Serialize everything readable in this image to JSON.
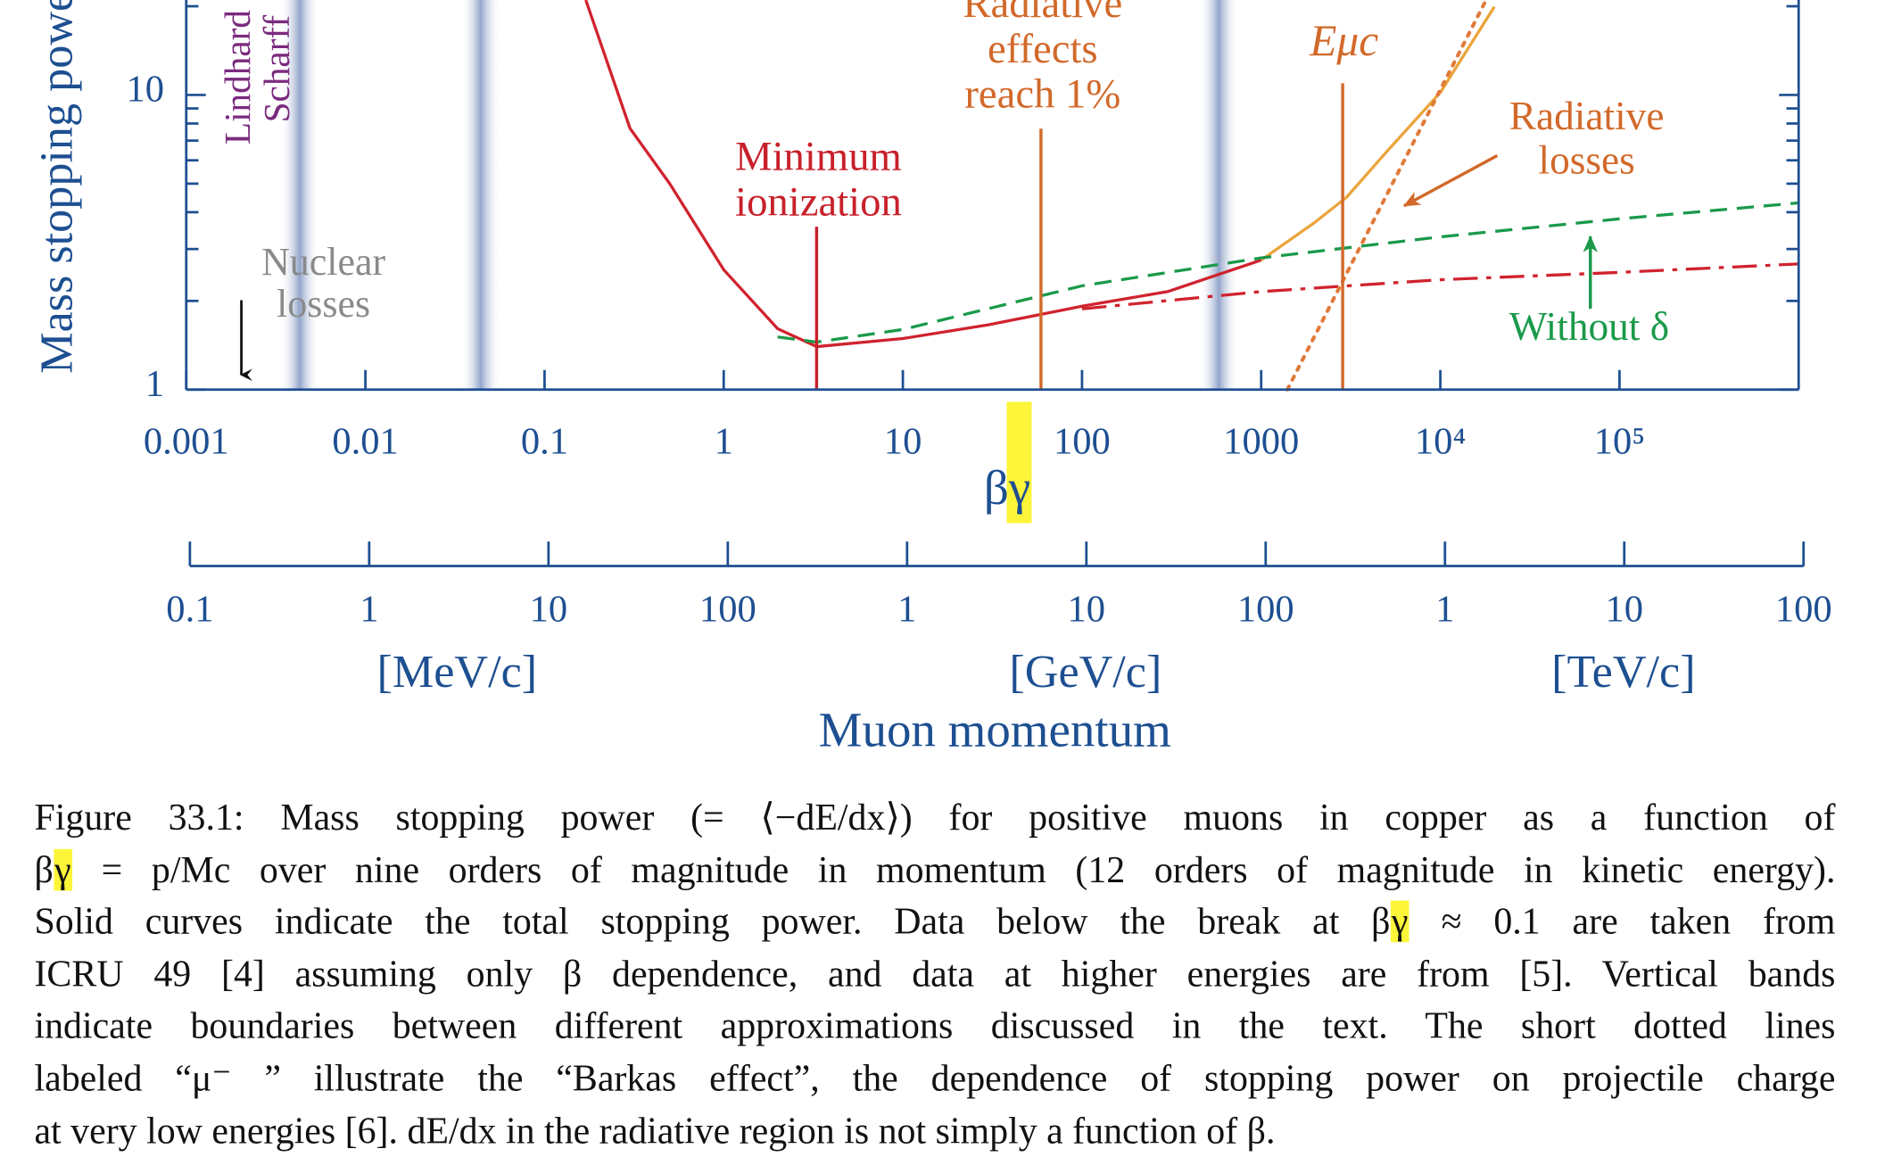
{
  "chart_data": {
    "type": "line",
    "y_label": "Mass stopping power",
    "x_label": [
      "β",
      {
        "text": "γ",
        "highlight": "#fdf53a"
      }
    ],
    "xlim": [
      0.001,
      1000000
    ],
    "ylim": [
      1,
      21
    ],
    "log_x": true,
    "log_y": true,
    "xticks": [
      0.001,
      0.01,
      0.1,
      1,
      10,
      100,
      1000,
      {
        "value": 10000,
        "label": "10⁴"
      },
      {
        "value": 100000,
        "label": "10⁵"
      }
    ],
    "yticks": [
      1,
      10
    ],
    "y_minor_ticks": [
      2,
      3,
      4,
      5,
      6,
      7,
      8,
      9,
      20
    ],
    "axis_color": "#1d4f91",
    "series": [
      {
        "color": "#d0232e",
        "style": "solid",
        "x": [
          0.17,
          0.3,
          0.5,
          1,
          2,
          3.3,
          10,
          30,
          100,
          300,
          1000
        ],
        "values": [
          21,
          7.7,
          5.0,
          2.55,
          1.61,
          1.4,
          1.49,
          1.66,
          1.92,
          2.15,
          2.75
        ]
      },
      {
        "color": "#eba43c",
        "style": "solid",
        "x": [
          1000,
          2000,
          3000,
          5000,
          10000,
          20000
        ],
        "values": [
          2.75,
          3.7,
          4.5,
          6.4,
          10.2,
          19.9
        ]
      },
      {
        "color": "#1a9a4a",
        "style": "dashed",
        "x": [
          2,
          3.3,
          10,
          100,
          1000,
          10000,
          100000,
          1000000
        ],
        "values": [
          1.51,
          1.45,
          1.6,
          2.25,
          2.8,
          3.3,
          3.8,
          4.3
        ]
      },
      {
        "color": "#d0232e",
        "style": "dashdot",
        "x": [
          100,
          1000,
          10000,
          100000,
          1000000
        ],
        "values": [
          1.88,
          2.15,
          2.36,
          2.5,
          2.67
        ]
      },
      {
        "color": "#e07a3a",
        "style": "dotted",
        "x": [
          1400,
          18000
        ],
        "values": [
          1,
          21
        ]
      }
    ],
    "bands": [
      0.0043,
      0.044,
      580
    ],
    "band_color": "#7f95c0",
    "markers": [
      {
        "x": 3.3,
        "color": "#c8202a",
        "text": [
          "Minimum",
          "ionization"
        ]
      },
      {
        "x": 59,
        "color": "#d2692a",
        "text": [
          "Radiative",
          "effects",
          "reach 1%"
        ]
      },
      {
        "x": 2850,
        "color": "#d2692a",
        "text": [
          "Eμc"
        ]
      }
    ],
    "annotations": [
      {
        "text": [
          "Lindhard",
          "Scharff"
        ],
        "color": "#7b2a7e"
      },
      {
        "text": [
          "Nuclear",
          "losses"
        ],
        "color": "#8a8a8a"
      },
      {
        "text": [
          "Radiative",
          "losses"
        ],
        "color": "#d2692a"
      },
      {
        "text": [
          "Without δ"
        ],
        "color": "#1a9a4a"
      }
    ],
    "x2_label": "Muon momentum",
    "x2lim": [
      0.1,
      100000000
    ],
    "x2ticks": [
      0.1,
      1,
      10,
      100,
      {
        "value": 1000,
        "label": "1"
      },
      {
        "value": 10000,
        "label": "10"
      },
      {
        "value": 100000,
        "label": "100"
      },
      {
        "value": 1000000,
        "label": "1"
      },
      {
        "value": 10000000,
        "label": "10"
      },
      {
        "value": 100000000,
        "label": "100"
      }
    ],
    "x2_units": [
      "[MeV/c]",
      "[GeV/c]",
      "[TeV/c]"
    ]
  },
  "caption": {
    "lines": [
      [
        "Figure 33.1: Mass stopping power (= ⟨−dE/dx⟩) for positive muons in copper as a function of"
      ],
      [
        "β",
        {
          "text": "γ",
          "highlight": "#fdf53a"
        },
        " = p/Mc over nine orders of magnitude in momentum (12 orders of magnitude in kinetic energy)."
      ],
      [
        "Solid curves indicate the total stopping power. Data below the break at β",
        {
          "text": "γ",
          "highlight": "#fdf53a"
        },
        " ≈ 0.1 are taken from"
      ],
      [
        "ICRU 49 [4] assuming only β dependence, and data at higher energies are from [5]. Vertical bands"
      ],
      [
        "indicate boundaries between different approximations discussed in the text. The short dotted lines"
      ],
      [
        "labeled “μ⁻ ” illustrate the “Barkas effect”, the dependence of stopping power on projectile charge"
      ],
      [
        "at very low energies [6]. dE/dx in the radiative region is not simply a function of β."
      ]
    ]
  }
}
